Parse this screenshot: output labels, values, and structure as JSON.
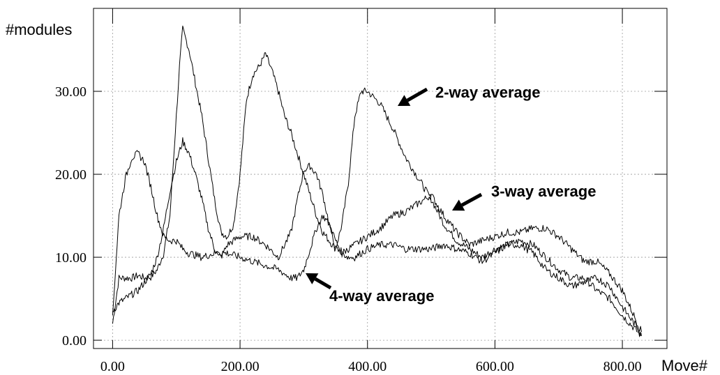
{
  "chart_data": {
    "type": "line",
    "xlabel": "Move#",
    "ylabel": "#modules",
    "xlim": [
      -30,
      870
    ],
    "ylim": [
      -1,
      40
    ],
    "x_ticks": [
      0,
      200,
      400,
      600,
      800
    ],
    "y_ticks": [
      0,
      10,
      20,
      30
    ],
    "x_tick_labels": [
      "0.00",
      "200.00",
      "400.00",
      "600.00",
      "800.00"
    ],
    "y_tick_labels": [
      "0.00",
      "10.00",
      "20.00",
      "30.00"
    ],
    "grid": true,
    "series": [
      {
        "name": "2-way average",
        "x": [
          0,
          10,
          20,
          30,
          40,
          50,
          60,
          70,
          80,
          90,
          100,
          105,
          110,
          120,
          130,
          140,
          150,
          160,
          170,
          180,
          190,
          200,
          210,
          220,
          230,
          240,
          250,
          260,
          270,
          280,
          290,
          300,
          310,
          320,
          330,
          340,
          350,
          360,
          370,
          380,
          390,
          400,
          420,
          440,
          460,
          480,
          500,
          520,
          540,
          560,
          580,
          600,
          620,
          640,
          660,
          680,
          700,
          720,
          740,
          760,
          780,
          800,
          830
        ],
        "y": [
          2,
          7.5,
          7.5,
          7.5,
          7.8,
          7.5,
          7.6,
          8.5,
          10.5,
          15,
          27,
          33,
          37.5,
          35,
          31,
          27,
          22,
          17,
          13,
          12.5,
          14,
          20,
          29,
          32,
          33,
          34.5,
          32.5,
          30,
          27,
          25,
          22.5,
          20,
          17.5,
          15,
          13,
          12,
          11,
          14,
          19,
          27,
          30,
          30,
          28.5,
          25.5,
          22,
          19.5,
          17,
          14,
          12,
          11,
          10,
          11,
          11.5,
          12,
          11.5,
          10,
          8.5,
          7.5,
          7.5,
          6,
          5,
          3,
          0.5
        ]
      },
      {
        "name": "3-way average",
        "x": [
          0,
          10,
          20,
          30,
          40,
          50,
          60,
          70,
          80,
          90,
          100,
          110,
          120,
          130,
          140,
          150,
          160,
          170,
          180,
          200,
          220,
          240,
          260,
          280,
          290,
          300,
          310,
          320,
          330,
          340,
          350,
          360,
          370,
          380,
          400,
          420,
          440,
          460,
          480,
          500,
          520,
          540,
          560,
          580,
          600,
          620,
          640,
          660,
          680,
          700,
          720,
          740,
          760,
          780,
          800,
          830
        ],
        "y": [
          3.5,
          4.5,
          5,
          5.5,
          6,
          7,
          8,
          10,
          13.5,
          18,
          21.5,
          24,
          22.5,
          20,
          17,
          13.5,
          11,
          10,
          11.5,
          12.5,
          12.5,
          11.5,
          10,
          13,
          17,
          20.5,
          21,
          20,
          17.5,
          14,
          11,
          10.5,
          11,
          11.5,
          12.5,
          13.5,
          15,
          15.5,
          16.5,
          17.5,
          15,
          13,
          11.5,
          12,
          12.5,
          13,
          13,
          13.5,
          13.5,
          12.5,
          11,
          9.5,
          9.5,
          8,
          6,
          1
        ]
      },
      {
        "name": "4-way average",
        "x": [
          0,
          10,
          20,
          30,
          40,
          50,
          60,
          70,
          80,
          90,
          100,
          110,
          120,
          140,
          160,
          180,
          200,
          220,
          240,
          260,
          280,
          290,
          300,
          310,
          320,
          330,
          340,
          350,
          360,
          370,
          380,
          400,
          420,
          440,
          460,
          480,
          500,
          520,
          540,
          560,
          580,
          600,
          620,
          640,
          660,
          680,
          700,
          720,
          740,
          760,
          780,
          800,
          830
        ],
        "y": [
          3,
          15,
          19.5,
          22,
          22.5,
          21.5,
          18.5,
          15,
          12.5,
          12,
          12,
          11,
          10.5,
          10,
          10.5,
          10.5,
          10,
          9.5,
          9,
          8.5,
          7.5,
          7.5,
          8.5,
          11,
          13.5,
          15,
          14,
          12,
          10.5,
          10,
          10,
          11,
          11.5,
          11.5,
          11,
          11,
          11,
          11.5,
          11,
          10.5,
          9.5,
          10.5,
          11.5,
          11.5,
          10.5,
          8.5,
          7.5,
          6.5,
          7,
          7.5,
          6.5,
          4,
          0.8
        ]
      }
    ],
    "annotations": [
      {
        "text": "2-way average",
        "x": 456,
        "y": 30
      },
      {
        "text": "3-way average",
        "x": 533,
        "y": 18
      },
      {
        "text": "4-way average",
        "x": 330,
        "y": 6.5
      }
    ]
  }
}
